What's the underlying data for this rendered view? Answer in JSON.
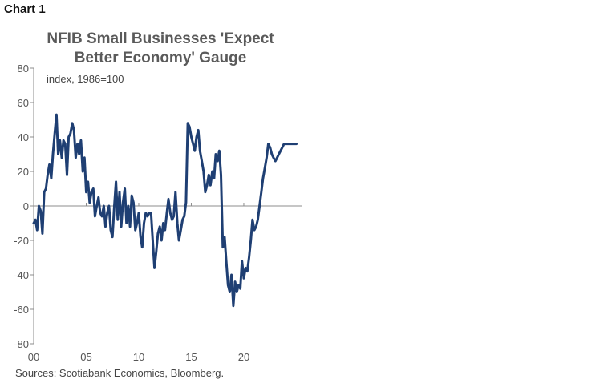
{
  "chart_label": "Chart 1",
  "chart_data": {
    "type": "line",
    "title_lines": [
      "NFIB Small Businesses 'Expect",
      "Better Economy' Gauge"
    ],
    "subtitle": "index, 1986=100",
    "source": "Sources: Scotiabank Economics, Bloomberg.",
    "xlabel": "",
    "ylabel": "",
    "xlim": [
      2000,
      2025.5
    ],
    "ylim": [
      -80,
      80
    ],
    "y_ticks": [
      80,
      60,
      40,
      20,
      0,
      -20,
      -40,
      -60,
      -80
    ],
    "x_ticks": [
      {
        "label": "00",
        "value": 2000
      },
      {
        "label": "05",
        "value": 2005
      },
      {
        "label": "10",
        "value": 2010
      },
      {
        "label": "15",
        "value": 2015
      },
      {
        "label": "20",
        "value": 2020
      }
    ],
    "grid": false,
    "legend": "none",
    "color": "#1f3f73",
    "series": [
      {
        "x": [
          2000.0,
          2000.17,
          2000.33,
          2000.5,
          2000.67,
          2000.83,
          2001.0,
          2001.17,
          2001.33,
          2001.5,
          2001.67,
          2001.83,
          2002.0,
          2002.17,
          2002.33,
          2002.5,
          2002.67,
          2002.83,
          2003.0,
          2003.17,
          2003.33,
          2003.5,
          2003.67,
          2003.83,
          2004.0,
          2004.17,
          2004.33,
          2004.5,
          2004.67,
          2004.83,
          2005.0,
          2005.17,
          2005.33,
          2005.5,
          2005.67,
          2005.83,
          2006.0,
          2006.17,
          2006.33,
          2006.5,
          2006.67,
          2006.83,
          2007.0,
          2007.17,
          2007.33,
          2007.5,
          2007.67,
          2007.83,
          2008.0,
          2008.17,
          2008.33,
          2008.5,
          2008.67,
          2008.83,
          2009.0,
          2009.17,
          2009.33,
          2009.5,
          2009.67,
          2009.83,
          2010.0,
          2010.17,
          2010.33,
          2010.5,
          2010.67,
          2010.83,
          2011.0,
          2011.17,
          2011.33,
          2011.5,
          2011.67,
          2011.83,
          2012.0,
          2012.17,
          2012.33,
          2012.5,
          2012.67,
          2012.83,
          2013.0,
          2013.17,
          2013.33,
          2013.5,
          2013.67,
          2013.83,
          2014.0,
          2014.17,
          2014.33,
          2014.5,
          2014.67,
          2014.83,
          2015.0,
          2015.17,
          2015.33,
          2015.5,
          2015.67,
          2015.83,
          2016.0,
          2016.17,
          2016.33,
          2016.5,
          2016.67,
          2016.83,
          2017.0,
          2017.17,
          2017.33,
          2017.5,
          2017.67,
          2017.83,
          2018.0,
          2018.17,
          2018.33,
          2018.5,
          2018.67,
          2018.83,
          2019.0,
          2019.17,
          2019.33,
          2019.5,
          2019.67,
          2019.83,
          2020.0,
          2020.17,
          2020.33,
          2020.5,
          2020.67,
          2020.83,
          2021.0,
          2021.17,
          2021.33,
          2021.5,
          2021.67,
          2021.83,
          2022.0,
          2022.17,
          2022.33,
          2022.5,
          2022.67,
          2022.83,
          2023.0,
          2023.17,
          2023.33,
          2023.5,
          2023.67,
          2023.83,
          2024.0,
          2024.17,
          2024.33,
          2024.5,
          2024.67,
          2024.83,
          2025.0
        ],
        "values": [
          -10,
          -8,
          -14,
          0,
          -3,
          -16,
          8,
          10,
          18,
          24,
          16,
          30,
          42,
          53,
          30,
          38,
          28,
          38,
          36,
          18,
          40,
          42,
          48,
          44,
          28,
          36,
          30,
          38,
          20,
          28,
          8,
          14,
          2,
          8,
          10,
          -6,
          0,
          5,
          -4,
          -6,
          0,
          -12,
          -4,
          0,
          -14,
          -18,
          0,
          14,
          -8,
          8,
          -12,
          2,
          10,
          -10,
          0,
          -12,
          6,
          2,
          -14,
          -10,
          -4,
          -18,
          -24,
          -10,
          -4,
          -6,
          -4,
          -4,
          -20,
          -36,
          -26,
          -16,
          -12,
          -20,
          -10,
          -14,
          -4,
          4,
          -4,
          -8,
          -6,
          8,
          -10,
          -20,
          -14,
          -8,
          -6,
          2,
          48,
          46,
          40,
          36,
          32,
          40,
          44,
          32,
          26,
          20,
          8,
          12,
          18,
          12,
          20,
          16,
          30,
          26,
          32,
          18,
          -24,
          -18,
          -32,
          -46,
          -50,
          -40,
          -58,
          -44,
          -50,
          -46,
          -48,
          -32,
          -42,
          -36,
          -38,
          -30,
          -20,
          -8,
          -14,
          -12,
          -8,
          0,
          8,
          16,
          22,
          28,
          36,
          34,
          30,
          28,
          26,
          28,
          30,
          32,
          34,
          36,
          36,
          36,
          36,
          36,
          36,
          36,
          36
        ]
      }
    ]
  }
}
